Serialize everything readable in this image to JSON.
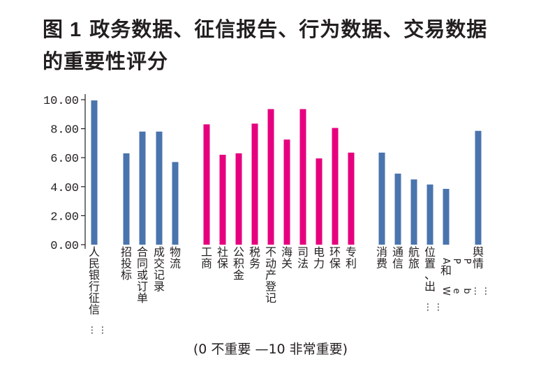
{
  "chart_data": {
    "type": "bar",
    "title_prefix": "图 1",
    "title": "政务数据、征信报告、行为数据、交易数据的重要性评分",
    "xlabel": "",
    "ylabel": "",
    "ylim": [
      0,
      10
    ],
    "yticks": [
      "0.00",
      "2.00",
      "4.00",
      "6.00",
      "8.00",
      "10.00"
    ],
    "grid": false,
    "colors": {
      "blue": "#4a74ad",
      "magenta": "#e6007e",
      "axis": "#231f20"
    },
    "categories": [
      "人民银行征信……",
      "招投标",
      "合同或订单",
      "成交记录",
      "物流",
      "工商",
      "社保",
      "公积金",
      "税务",
      "不动产登记",
      "海关",
      "司法",
      "电力",
      "环保",
      "专利",
      "消费",
      "通信",
      "航旅",
      "位置、出……",
      "APP和Web……",
      "舆情"
    ],
    "values": [
      9.95,
      6.3,
      7.8,
      7.8,
      5.7,
      8.3,
      6.2,
      6.3,
      8.35,
      9.35,
      7.25,
      9.35,
      5.95,
      8.05,
      6.35,
      6.35,
      4.9,
      4.5,
      4.15,
      3.85,
      7.85
    ],
    "groups": [
      {
        "name": "征信报告",
        "color": "blue",
        "indices": [
          0
        ]
      },
      {
        "name": "交易数据",
        "color": "blue",
        "indices": [
          1,
          2,
          3,
          4
        ]
      },
      {
        "name": "政务数据",
        "color": "magenta",
        "indices": [
          5,
          6,
          7,
          8,
          9,
          10,
          11,
          12,
          13,
          14
        ]
      },
      {
        "name": "行为数据",
        "color": "blue",
        "indices": [
          15,
          16,
          17,
          18,
          19
        ]
      },
      {
        "name": "舆情",
        "color": "blue",
        "indices": [
          20
        ]
      }
    ],
    "footnote": "(0 不重要 —10 非常重要)"
  }
}
